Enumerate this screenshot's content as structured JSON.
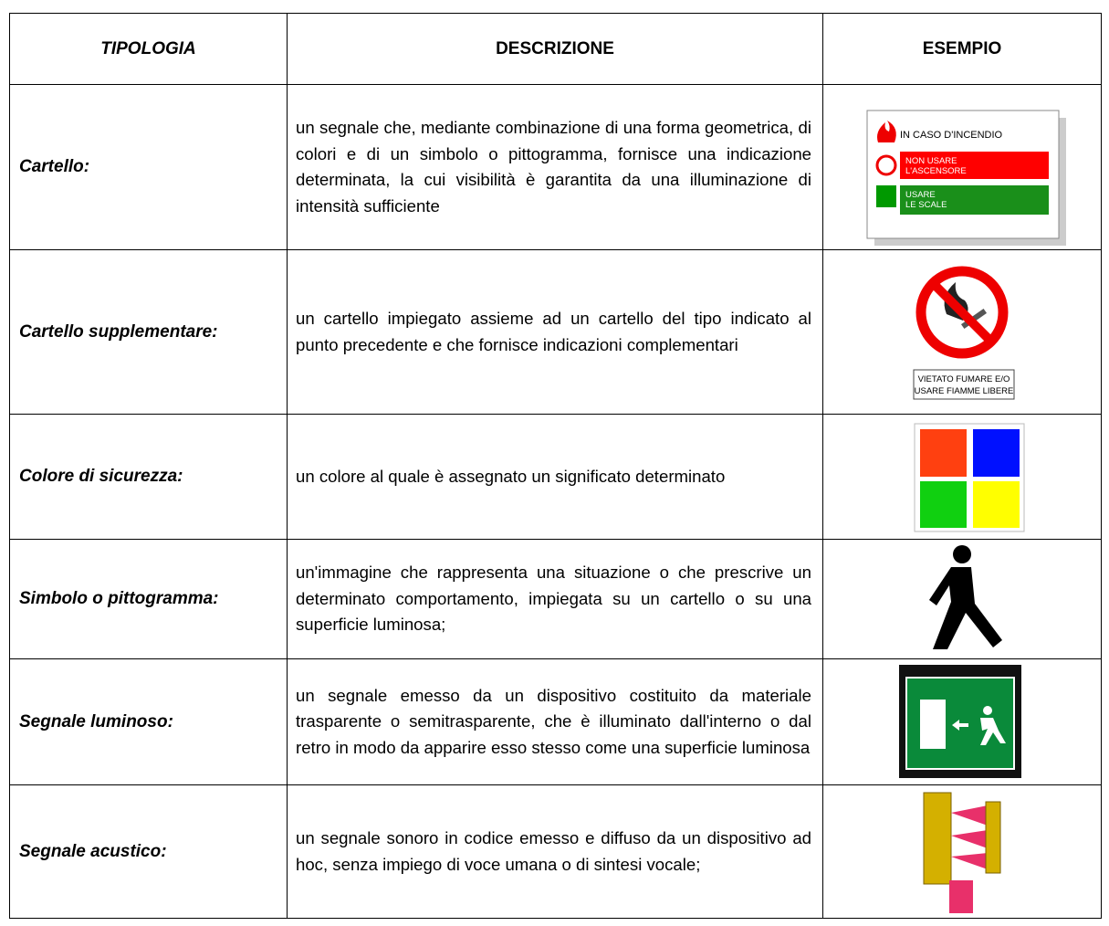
{
  "table": {
    "header": [
      "TIPOLOGIA",
      "DESCRIZIONE",
      "ESEMPIO"
    ],
    "rows": [
      {
        "tipologia": "Cartello:",
        "descrizione": "un segnale che, mediante combinazione di una forma geometrica, di colori e di un simbolo o pittogramma, fornisce una indicazione determinata, la cui visibilità è garantita da una illuminazione di intensità sufficiente"
      },
      {
        "tipologia": "Cartello supplementare:",
        "descrizione": "un cartello impiegato assieme ad un cartello del tipo indicato al punto precedente e che fornisce indicazioni complementari"
      },
      {
        "tipologia": "Colore di sicurezza:",
        "descrizione": "un colore al quale è assegnato un significato determinato"
      },
      {
        "tipologia": "Simbolo o pittogramma:",
        "descrizione": "un'immagine che rappresenta una situazione o che prescrive un determinato comportamento, impiegata su un cartello o su una superficie luminosa;"
      },
      {
        "tipologia": "Segnale luminoso:",
        "descrizione": "un segnale emesso da un dispositivo costituito da materiale trasparente o semitrasparente, che è illuminato dall'interno o dal retro in modo da apparire esso stesso come una superficie luminosa"
      },
      {
        "tipologia": "Segnale acustico:",
        "descrizione": "un segnale sonoro in codice emesso e diffuso da un dispositivo ad hoc, senza impiego di voce umana o di sintesi vocale;"
      }
    ]
  },
  "examples": {
    "cartello": [
      "IN CASO D'INCENDIO",
      "NON USARE",
      "L'ASCENSORE",
      "USARE",
      "LE SCALE"
    ],
    "supplementare": [
      "VIETATO FUMARE E/O",
      "USARE FIAMME LIBERE"
    ]
  }
}
